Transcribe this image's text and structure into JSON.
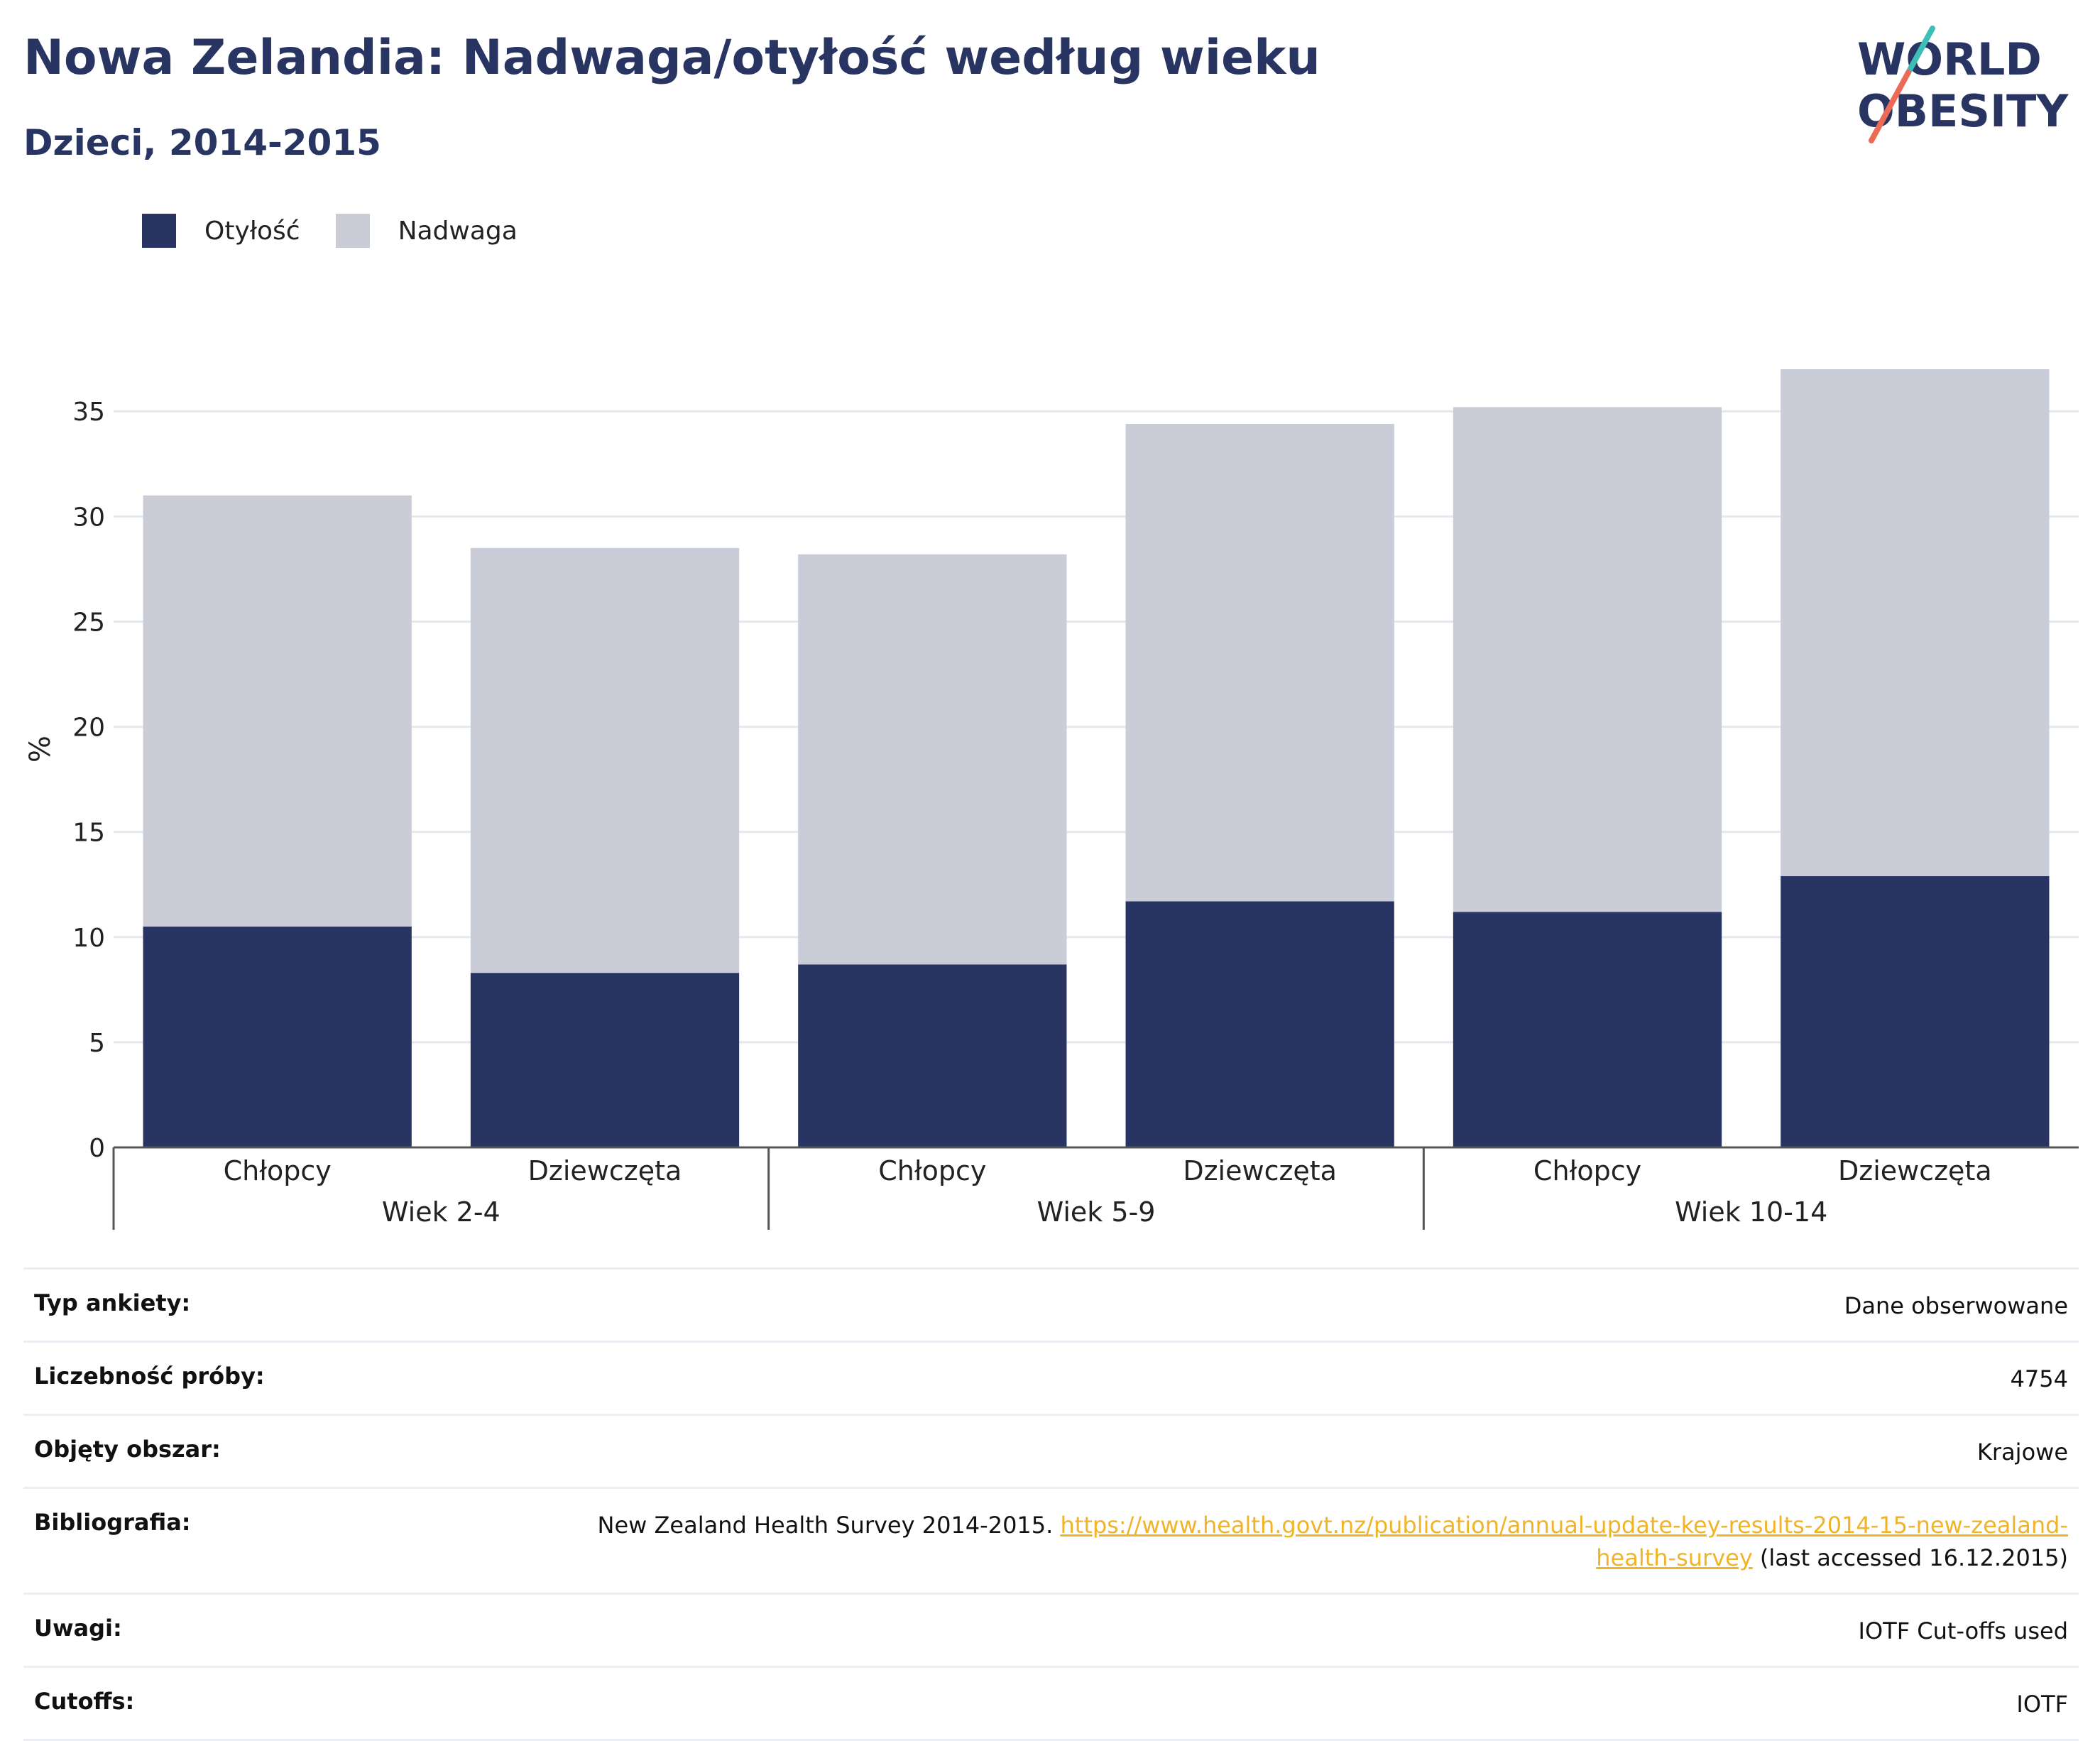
{
  "header": {
    "title": "Nowa Zelandia: Nadwaga/otyłość według wieku",
    "subtitle": "Dzieci, 2014-2015"
  },
  "logo": {
    "line1": "WORLD",
    "line2": "OBESITY"
  },
  "colors": {
    "obesity": "#283562",
    "overweight": "#cacdd8",
    "title": "#283562",
    "link": "#f0b429",
    "logo_teal": "#3dbfb8",
    "logo_coral": "#ec6b56"
  },
  "chart_data": {
    "type": "bar",
    "stacked": true,
    "title": "Nowa Zelandia: Nadwaga/otyłość według wieku",
    "subtitle": "Dzieci, 2014-2015",
    "ylabel": "%",
    "ylim": [
      0,
      37
    ],
    "yticks": [
      0,
      5,
      10,
      15,
      20,
      25,
      30,
      35
    ],
    "grid": true,
    "legend_placement": "top-left",
    "groups": [
      {
        "label": "Wiek 2-4",
        "categories": [
          "Chłopcy",
          "Dziewczęta"
        ]
      },
      {
        "label": "Wiek 5-9",
        "categories": [
          "Chłopcy",
          "Dziewczęta"
        ]
      },
      {
        "label": "Wiek 10-14",
        "categories": [
          "Chłopcy",
          "Dziewczęta"
        ]
      }
    ],
    "categories": [
      "Chłopcy",
      "Dziewczęta",
      "Chłopcy",
      "Dziewczęta",
      "Chłopcy",
      "Dziewczęta"
    ],
    "series": [
      {
        "name": "Otyłość",
        "color": "#283562",
        "values": [
          10.5,
          8.3,
          8.7,
          11.7,
          11.2,
          12.9
        ]
      },
      {
        "name": "Nadwaga",
        "color": "#cacdd8",
        "values": [
          20.5,
          20.2,
          19.5,
          22.7,
          24.0,
          24.1
        ]
      }
    ]
  },
  "info": [
    {
      "label": "Typ ankiety:",
      "value": "Dane obserwowane"
    },
    {
      "label": "Liczebność próby:",
      "value": "4754"
    },
    {
      "label": "Objęty obszar:",
      "value": "Krajowe"
    },
    {
      "label": "Bibliografia:",
      "value_pre": "New Zealand Health Survey 2014-2015.",
      "link": "https://www.health.govt.nz/publication/annual-update-key-results-2014-15-new-zealand-health-survey",
      "value_post": "(last accessed 16.12.2015)"
    },
    {
      "label": "Uwagi:",
      "value": "IOTF Cut-offs used"
    },
    {
      "label": "Cutoffs:",
      "value": "IOTF"
    }
  ]
}
